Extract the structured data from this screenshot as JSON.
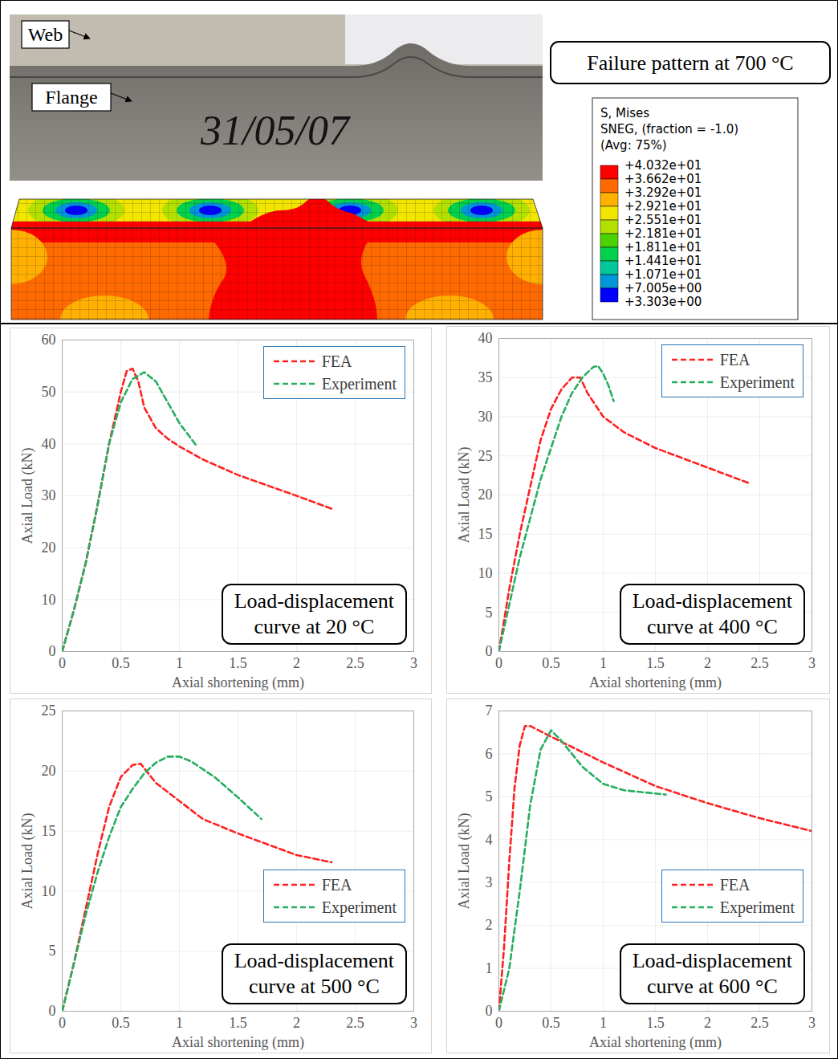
{
  "figure_panel": {
    "photo_labels": [
      "Web",
      "Flange"
    ],
    "specimen_marking": "31/05/07",
    "title": "Failure pattern at 700 °C",
    "color_bar": {
      "title": [
        "S, Mises",
        "SNEG, (fraction = -1.0)",
        "(Avg: 75%)"
      ],
      "ticks": [
        {
          "value": 40.32,
          "label": "+4.032e+01"
        },
        {
          "value": 36.62,
          "label": "+3.662e+01"
        },
        {
          "value": 32.92,
          "label": "+3.292e+01"
        },
        {
          "value": 29.21,
          "label": "+2.921e+01"
        },
        {
          "value": 25.51,
          "label": "+2.551e+01"
        },
        {
          "value": 21.81,
          "label": "+2.181e+01"
        },
        {
          "value": 18.11,
          "label": "+1.811e+01"
        },
        {
          "value": 14.41,
          "label": "+1.441e+01"
        },
        {
          "value": 10.71,
          "label": "+1.071e+01"
        },
        {
          "value": 7.005,
          "label": "+7.005e+00"
        },
        {
          "value": 3.303,
          "label": "+3.303e+00"
        }
      ],
      "colors": [
        "#ff0000",
        "#ff6a00",
        "#ffb000",
        "#f2e600",
        "#b4e000",
        "#4cd200",
        "#00d04c",
        "#00c89a",
        "#0096d8",
        "#0000ff"
      ]
    }
  },
  "chart_data": [
    {
      "type": "line",
      "title": "Load-displacement curve at 20 °C",
      "x_label": "Axial shortening (mm)",
      "y_label": "Axial Load (kN)",
      "xlim": [
        0,
        3
      ],
      "xticks": [
        0,
        0.5,
        1,
        1.5,
        2,
        2.5,
        3
      ],
      "ylim": [
        0,
        60
      ],
      "yticks": [
        0,
        10,
        20,
        30,
        40,
        50,
        60
      ],
      "grid": true,
      "legend": "top-right",
      "series": [
        {
          "name": "FEA",
          "color": "#ff2020",
          "line_style": "dashed",
          "x": [
            0,
            0.1,
            0.2,
            0.3,
            0.4,
            0.5,
            0.55,
            0.6,
            0.65,
            0.7,
            0.8,
            0.9,
            1.0,
            1.2,
            1.5,
            2.0,
            2.3
          ],
          "values": [
            0,
            8,
            17,
            28,
            40,
            50,
            54,
            54.5,
            52,
            47,
            43,
            41,
            39.5,
            37,
            34,
            30,
            27.5
          ]
        },
        {
          "name": "Experiment",
          "color": "#27ae60",
          "line_style": "dashed",
          "x": [
            0,
            0.1,
            0.2,
            0.3,
            0.4,
            0.5,
            0.6,
            0.7,
            0.8,
            0.9,
            1.0,
            1.1,
            1.15
          ],
          "values": [
            0,
            8,
            17,
            28,
            40,
            48,
            52.5,
            53.8,
            52,
            48,
            44,
            41,
            39.5
          ]
        }
      ]
    },
    {
      "type": "line",
      "title": "Load-displacement curve at 400 °C",
      "x_label": "Axial shortening (mm)",
      "y_label": "Axial Load (kN)",
      "xlim": [
        0,
        3
      ],
      "xticks": [
        0,
        0.5,
        1,
        1.5,
        2,
        2.5,
        3
      ],
      "ylim": [
        0,
        40
      ],
      "yticks": [
        0,
        5,
        10,
        15,
        20,
        25,
        30,
        35,
        40
      ],
      "grid": true,
      "legend": "top-right",
      "series": [
        {
          "name": "FEA",
          "color": "#ff2020",
          "line_style": "dashed",
          "x": [
            0,
            0.1,
            0.2,
            0.3,
            0.4,
            0.5,
            0.6,
            0.7,
            0.78,
            0.85,
            1.0,
            1.2,
            1.5,
            2.0,
            2.4
          ],
          "values": [
            0,
            8,
            15,
            21,
            27,
            31,
            33.5,
            35,
            35,
            33,
            30,
            28,
            26,
            23.5,
            21.5
          ]
        },
        {
          "name": "Experiment",
          "color": "#27ae60",
          "line_style": "dashed",
          "x": [
            0,
            0.1,
            0.2,
            0.3,
            0.4,
            0.5,
            0.6,
            0.7,
            0.8,
            0.9,
            0.95,
            1.0,
            1.05,
            1.1
          ],
          "values": [
            0,
            6,
            12,
            17,
            22,
            26,
            30,
            33,
            35,
            36.3,
            36.5,
            35.5,
            34,
            32
          ]
        }
      ]
    },
    {
      "type": "line",
      "title": "Load-displacement curve at 500 °C",
      "x_label": "Axial shortening (mm)",
      "y_label": "Axial Load (kN)",
      "xlim": [
        0,
        3
      ],
      "xticks": [
        0,
        0.5,
        1,
        1.5,
        2,
        2.5,
        3
      ],
      "ylim": [
        0,
        25
      ],
      "yticks": [
        0,
        5,
        10,
        15,
        20,
        25
      ],
      "grid": true,
      "legend": "right",
      "series": [
        {
          "name": "FEA",
          "color": "#ff2020",
          "line_style": "dashed",
          "x": [
            0,
            0.1,
            0.2,
            0.3,
            0.4,
            0.5,
            0.6,
            0.67,
            0.8,
            1.0,
            1.2,
            1.5,
            2.0,
            2.3
          ],
          "values": [
            0,
            4,
            8.5,
            13,
            17,
            19.5,
            20.5,
            20.6,
            19,
            17.5,
            16,
            14.8,
            13,
            12.4
          ]
        },
        {
          "name": "Experiment",
          "color": "#27ae60",
          "line_style": "dashed",
          "x": [
            0,
            0.1,
            0.2,
            0.3,
            0.4,
            0.5,
            0.6,
            0.7,
            0.8,
            0.9,
            1.0,
            1.1,
            1.3,
            1.5,
            1.7
          ],
          "values": [
            0,
            4,
            8,
            11.5,
            14.5,
            17,
            18.5,
            19.8,
            20.7,
            21.2,
            21.2,
            20.8,
            19.5,
            17.8,
            16
          ]
        }
      ]
    },
    {
      "type": "line",
      "title": "Load-displacement curve at 600 °C",
      "x_label": "Axial shortening (mm)",
      "y_label": "Axial Load (kN)",
      "xlim": [
        0,
        3
      ],
      "xticks": [
        0,
        0.5,
        1,
        1.5,
        2,
        2.5,
        3
      ],
      "ylim": [
        0,
        7
      ],
      "yticks": [
        0,
        1,
        2,
        3,
        4,
        5,
        6,
        7
      ],
      "grid": true,
      "legend": "right",
      "series": [
        {
          "name": "FEA",
          "color": "#ff2020",
          "line_style": "dashed",
          "x": [
            0,
            0.05,
            0.1,
            0.15,
            0.2,
            0.25,
            0.3,
            0.5,
            1.0,
            1.5,
            2.0,
            2.5,
            3.0
          ],
          "values": [
            0,
            1.5,
            3.5,
            5.2,
            6.2,
            6.65,
            6.65,
            6.4,
            5.8,
            5.25,
            4.85,
            4.5,
            4.2
          ]
        },
        {
          "name": "Experiment",
          "color": "#27ae60",
          "line_style": "dashed",
          "x": [
            0,
            0.1,
            0.2,
            0.3,
            0.4,
            0.5,
            0.6,
            0.8,
            1.0,
            1.2,
            1.6
          ],
          "values": [
            0,
            1,
            2.8,
            4.8,
            6.1,
            6.55,
            6.3,
            5.7,
            5.3,
            5.15,
            5.05
          ]
        }
      ]
    }
  ]
}
